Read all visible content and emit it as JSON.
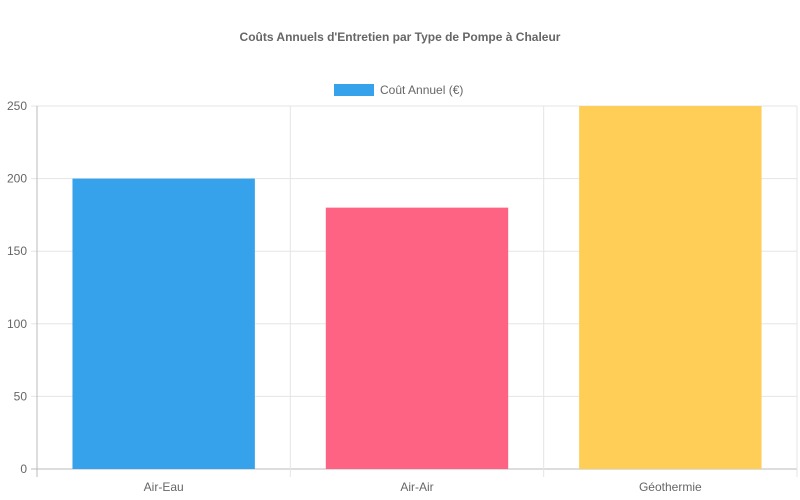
{
  "chart_data": {
    "type": "bar",
    "title": "Coûts Annuels d'Entretien par Type de Pompe à Chaleur",
    "categories": [
      "Air-Eau",
      "Air-Air",
      "Géothermie"
    ],
    "series": [
      {
        "name": "Coût Annuel (€)",
        "values": [
          200,
          180,
          250
        ],
        "colors": [
          "#36a2eb",
          "#ff6384",
          "#ffce56"
        ]
      }
    ],
    "legend_color": "#36a2eb",
    "legend_position": "top",
    "xlabel": "",
    "ylabel": "",
    "ylim": [
      0,
      250
    ],
    "yticks": [
      0,
      50,
      100,
      150,
      200,
      250
    ],
    "grid": true
  }
}
